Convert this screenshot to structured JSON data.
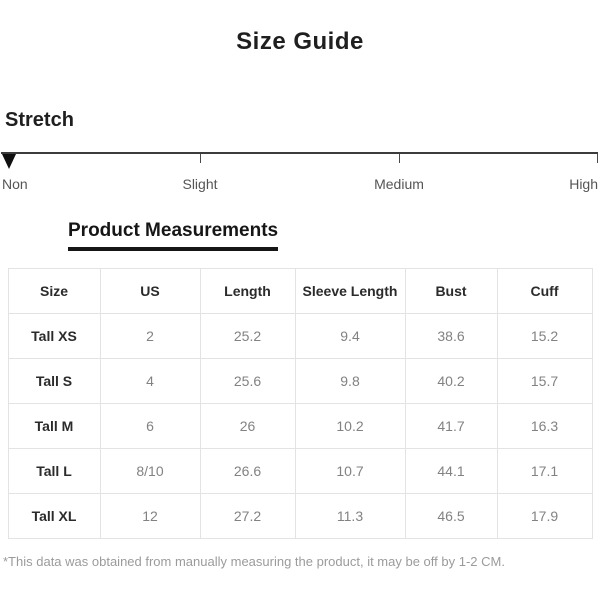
{
  "title": "Size Guide",
  "stretch": {
    "label": "Stretch",
    "levels": {
      "0": "Non",
      "1": "Slight",
      "2": "Medium",
      "3": "High"
    },
    "selected_level": "Non"
  },
  "measurements": {
    "heading": "Product Measurements",
    "columns": [
      "Size",
      "US",
      "Length",
      "Sleeve Length",
      "Bust",
      "Cuff"
    ],
    "rows": [
      [
        "Tall XS",
        "2",
        "25.2",
        "9.4",
        "38.6",
        "15.2"
      ],
      [
        "Tall S",
        "4",
        "25.6",
        "9.8",
        "40.2",
        "15.7"
      ],
      [
        "Tall M",
        "6",
        "26",
        "10.2",
        "41.7",
        "16.3"
      ],
      [
        "Tall L",
        "8/10",
        "26.6",
        "10.7",
        "44.1",
        "17.1"
      ],
      [
        "Tall XL",
        "12",
        "27.2",
        "11.3",
        "46.5",
        "17.9"
      ]
    ]
  },
  "footnote": "*This data was obtained from manually measuring the product, it may be off by 1-2 CM.",
  "colors": {
    "heading_text": "#1f1f1f",
    "value_text": "#828282",
    "table_border": "#e3e3e3",
    "footnote_text": "#9b9b9b",
    "pointer": "#101010"
  }
}
